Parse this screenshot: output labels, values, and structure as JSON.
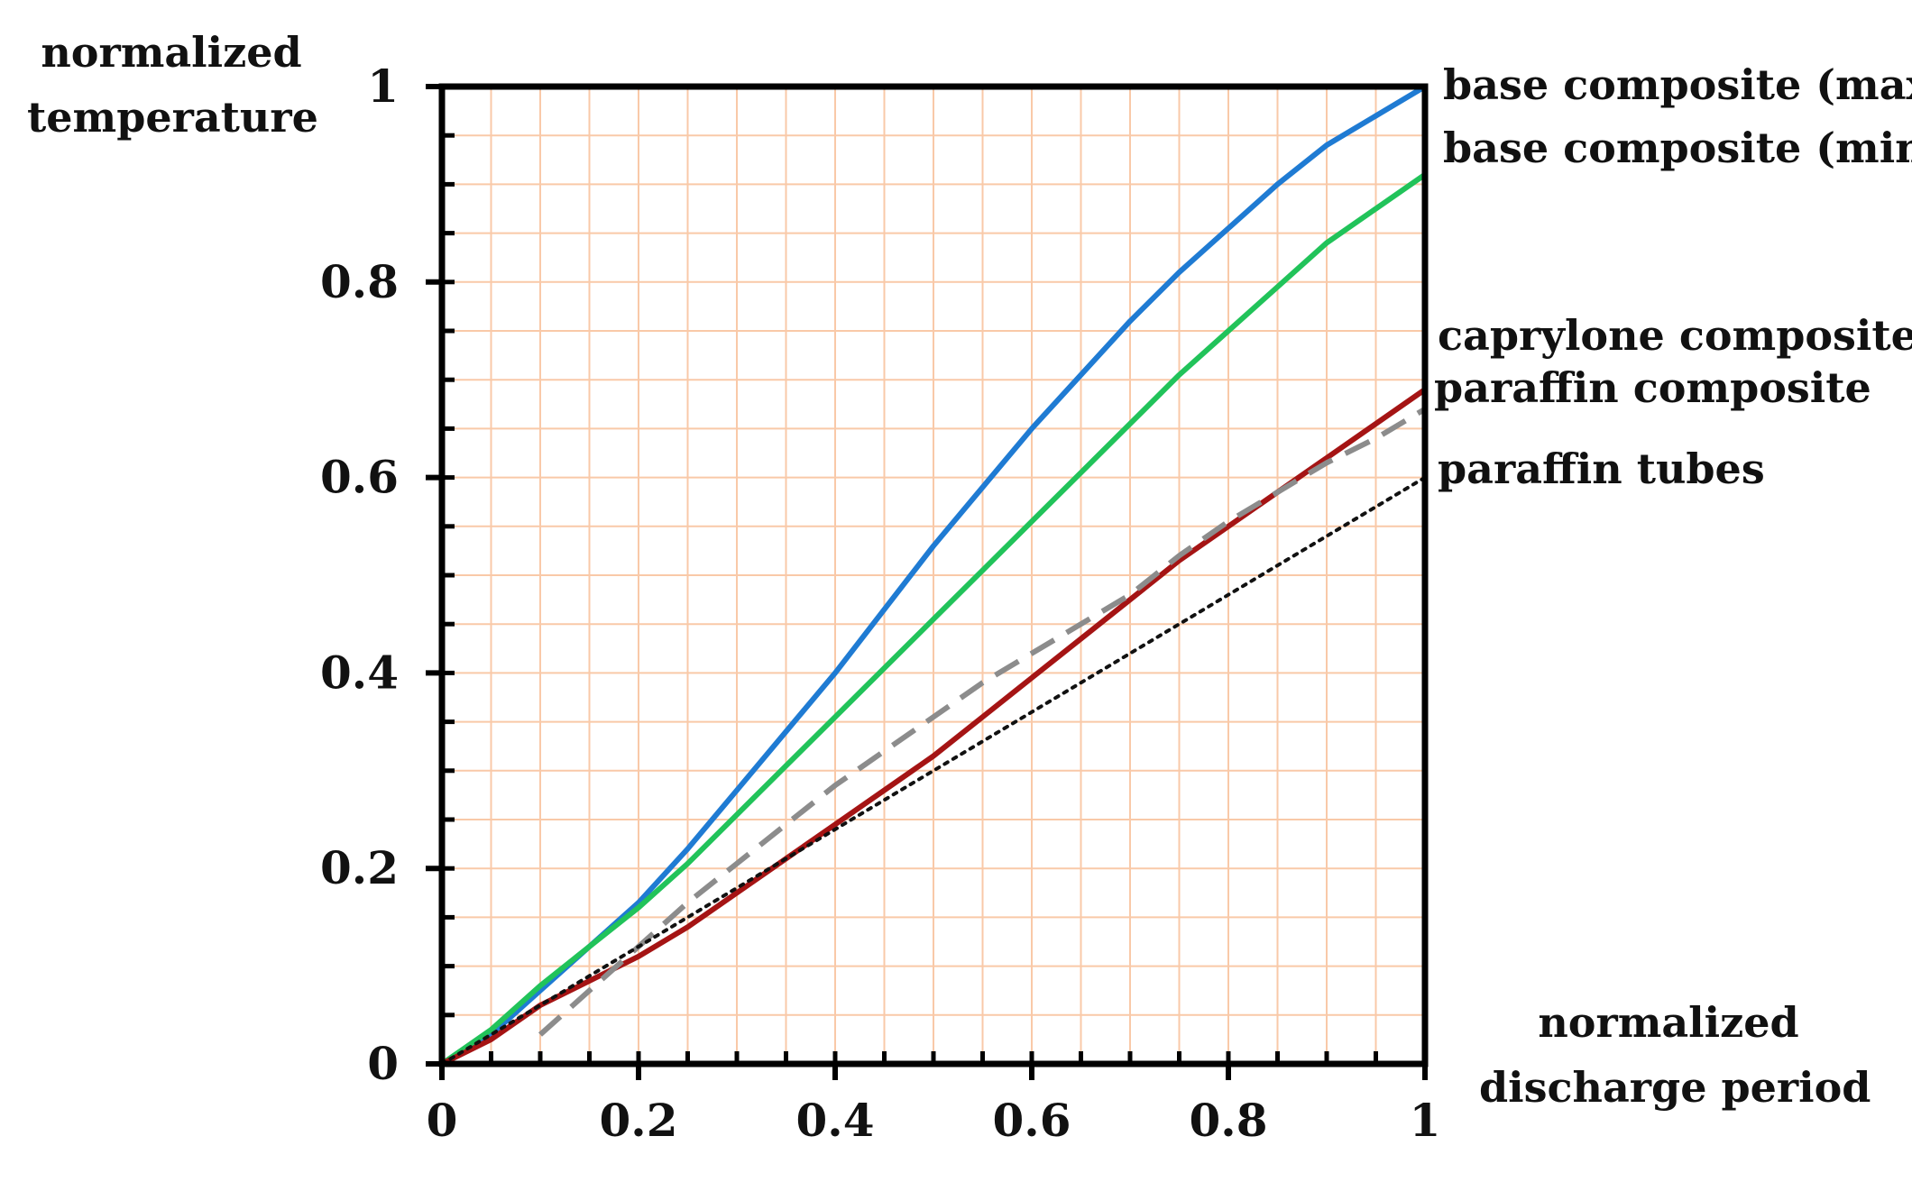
{
  "chart_data": {
    "type": "line",
    "title": "",
    "ylabel_lines": [
      "normalized",
      "temperature"
    ],
    "xlabel_lines": [
      "normalized",
      "discharge period"
    ],
    "xlim": [
      0,
      1
    ],
    "ylim": [
      0,
      1
    ],
    "x_ticks": [
      "0",
      "0.2",
      "0.4",
      "0.6",
      "0.8",
      "1"
    ],
    "y_ticks": [
      "0",
      "0.2",
      "0.4",
      "0.6",
      "0.8",
      "1"
    ],
    "grid": true,
    "grid_color": "#f9c9a8",
    "series": [
      {
        "name": "base composite (max)",
        "color": "#1f7bd3",
        "style": "solid",
        "x": [
          0,
          0.05,
          0.1,
          0.15,
          0.2,
          0.25,
          0.3,
          0.35,
          0.4,
          0.45,
          0.5,
          0.55,
          0.6,
          0.65,
          0.7,
          0.75,
          0.8,
          0.85,
          0.9,
          0.95,
          1.0
        ],
        "y": [
          0,
          0.03,
          0.075,
          0.12,
          0.165,
          0.22,
          0.28,
          0.34,
          0.4,
          0.465,
          0.53,
          0.59,
          0.65,
          0.705,
          0.76,
          0.81,
          0.855,
          0.9,
          0.94,
          0.97,
          1.0
        ]
      },
      {
        "name": "base composite (min)",
        "color": "#21c35a",
        "style": "solid",
        "x": [
          0,
          0.05,
          0.1,
          0.15,
          0.2,
          0.25,
          0.3,
          0.35,
          0.4,
          0.45,
          0.5,
          0.55,
          0.6,
          0.65,
          0.7,
          0.75,
          0.8,
          0.85,
          0.9,
          0.95,
          1.0
        ],
        "y": [
          0,
          0.035,
          0.08,
          0.12,
          0.16,
          0.205,
          0.255,
          0.305,
          0.355,
          0.405,
          0.455,
          0.505,
          0.555,
          0.605,
          0.655,
          0.705,
          0.75,
          0.795,
          0.84,
          0.875,
          0.91
        ]
      },
      {
        "name": "caprylone composite",
        "color": "#a51414",
        "style": "solid",
        "x": [
          0,
          0.05,
          0.1,
          0.15,
          0.2,
          0.25,
          0.3,
          0.35,
          0.4,
          0.45,
          0.5,
          0.55,
          0.6,
          0.65,
          0.7,
          0.75,
          0.8,
          0.85,
          0.9,
          0.95,
          1.0
        ],
        "y": [
          0,
          0.025,
          0.06,
          0.085,
          0.11,
          0.14,
          0.175,
          0.21,
          0.245,
          0.28,
          0.315,
          0.355,
          0.395,
          0.435,
          0.475,
          0.515,
          0.55,
          0.585,
          0.62,
          0.655,
          0.69
        ]
      },
      {
        "name": "paraffin composite",
        "color": "#8c8c8c",
        "style": "dashed",
        "x": [
          0.1,
          0.15,
          0.2,
          0.25,
          0.3,
          0.35,
          0.4,
          0.45,
          0.5,
          0.55,
          0.6,
          0.65,
          0.7,
          0.75,
          0.8,
          0.85,
          0.9,
          0.95,
          1.0
        ],
        "y": [
          0.03,
          0.075,
          0.12,
          0.165,
          0.205,
          0.245,
          0.285,
          0.32,
          0.355,
          0.39,
          0.42,
          0.45,
          0.48,
          0.52,
          0.555,
          0.585,
          0.615,
          0.64,
          0.67
        ]
      },
      {
        "name": "paraffin tubes",
        "color": "#111111",
        "style": "dotted",
        "x": [
          0,
          1
        ],
        "y": [
          0,
          0.6
        ]
      }
    ]
  }
}
